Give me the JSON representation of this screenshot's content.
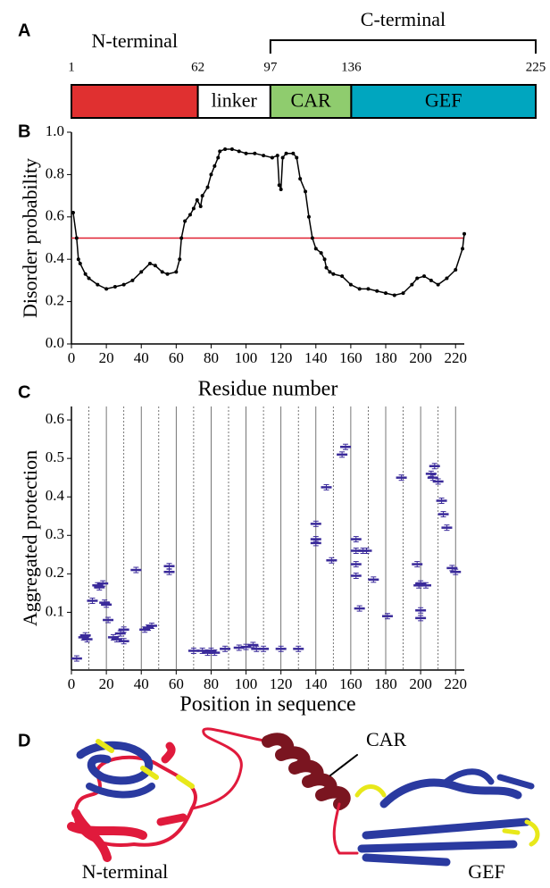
{
  "chart_data": [
    {
      "type": "domain",
      "panel": "A",
      "boundaries": [
        1,
        62,
        97,
        136,
        225
      ],
      "segments": [
        {
          "name": null,
          "color": "#e03030"
        },
        {
          "name": "linker",
          "color": "#ffffff"
        },
        {
          "name": "CAR",
          "color": "#8fcc6e"
        },
        {
          "name": "GEF",
          "color": "#00a6bf"
        }
      ],
      "annotations": [
        "N-terminal",
        "C-terminal"
      ]
    },
    {
      "type": "line",
      "panel": "B",
      "ylabel": "Disorder probability",
      "xlabel": "Residue number",
      "x": [
        1,
        3,
        4,
        5,
        8,
        10,
        15,
        20,
        25,
        30,
        35,
        40,
        45,
        48,
        52,
        55,
        60,
        62,
        63,
        65,
        68,
        70,
        72,
        74,
        75,
        78,
        80,
        82,
        84,
        85,
        88,
        92,
        96,
        100,
        105,
        110,
        115,
        118,
        119,
        120,
        121,
        123,
        127,
        129,
        131,
        134,
        136,
        138,
        140,
        143,
        145,
        146,
        148,
        150,
        155,
        160,
        165,
        170,
        175,
        180,
        185,
        190,
        195,
        198,
        202,
        206,
        210,
        215,
        220,
        224,
        225
      ],
      "values": [
        0.62,
        0.5,
        0.4,
        0.38,
        0.33,
        0.31,
        0.28,
        0.26,
        0.27,
        0.28,
        0.3,
        0.34,
        0.38,
        0.37,
        0.34,
        0.33,
        0.34,
        0.4,
        0.5,
        0.58,
        0.61,
        0.64,
        0.68,
        0.65,
        0.7,
        0.74,
        0.8,
        0.84,
        0.88,
        0.91,
        0.92,
        0.92,
        0.91,
        0.9,
        0.9,
        0.89,
        0.88,
        0.89,
        0.75,
        0.73,
        0.88,
        0.9,
        0.9,
        0.88,
        0.78,
        0.72,
        0.6,
        0.5,
        0.45,
        0.43,
        0.4,
        0.36,
        0.34,
        0.33,
        0.32,
        0.28,
        0.26,
        0.26,
        0.25,
        0.24,
        0.23,
        0.24,
        0.28,
        0.31,
        0.32,
        0.3,
        0.28,
        0.31,
        0.35,
        0.45,
        0.52
      ],
      "color": "#000000",
      "reference_line": {
        "value": 0.5,
        "color": "#e02030"
      },
      "xlim": [
        0,
        225
      ],
      "ylim": [
        0,
        1
      ],
      "xticks": [
        0,
        20,
        40,
        60,
        80,
        100,
        120,
        140,
        160,
        180,
        200,
        220
      ],
      "yticks": [
        {
          "value": 0,
          "label": "0.0"
        },
        0.2,
        0.4,
        0.6,
        0.8,
        {
          "value": 1,
          "label": "1.0"
        }
      ]
    },
    {
      "type": "errorbar",
      "panel": "C",
      "ylabel": "Aggregated protection",
      "xlabel": "Position in sequence",
      "x": [
        3,
        7,
        8,
        9,
        12,
        15,
        16,
        18,
        19,
        20,
        21,
        24,
        26,
        28,
        30,
        30,
        37,
        42,
        44,
        46,
        56,
        56,
        70,
        75,
        78,
        80,
        82,
        88,
        96,
        100,
        104,
        106,
        110,
        120,
        130,
        140,
        140,
        140,
        146,
        149,
        155,
        157,
        163,
        163,
        163,
        163,
        165,
        167,
        169,
        173,
        181,
        189,
        198,
        199,
        200,
        200,
        200,
        203,
        206,
        207,
        208,
        210,
        212,
        213,
        215,
        218,
        220
      ],
      "values": [
        -0.02,
        0.035,
        0.04,
        0.03,
        0.13,
        0.17,
        0.165,
        0.175,
        0.125,
        0.12,
        0.08,
        0.035,
        0.03,
        0.045,
        0.055,
        0.025,
        0.21,
        0.055,
        0.06,
        0.065,
        0.205,
        0.22,
        0.0,
        0.0,
        -0.005,
        0.0,
        -0.005,
        0.005,
        0.008,
        0.01,
        0.015,
        0.005,
        0.005,
        0.005,
        0.005,
        0.33,
        0.29,
        0.28,
        0.425,
        0.235,
        0.51,
        0.53,
        0.29,
        0.26,
        0.225,
        0.195,
        0.11,
        0.26,
        0.26,
        0.185,
        0.09,
        0.45,
        0.225,
        0.17,
        0.175,
        0.105,
        0.085,
        0.17,
        0.46,
        0.45,
        0.48,
        0.44,
        0.39,
        0.355,
        0.32,
        0.215,
        0.205
      ],
      "color": "#3a2a9a",
      "grid": true,
      "xlim": [
        0,
        225
      ],
      "ylim": [
        -0.05,
        0.635
      ],
      "xticks": [
        0,
        20,
        40,
        60,
        80,
        100,
        120,
        140,
        160,
        180,
        200,
        220
      ],
      "yticks": [
        0.1,
        0.2,
        0.3,
        0.4,
        0.5,
        0.6
      ]
    }
  ],
  "structure": {
    "panel": "D",
    "labels": [
      "CAR",
      "N-terminal",
      "GEF"
    ]
  }
}
